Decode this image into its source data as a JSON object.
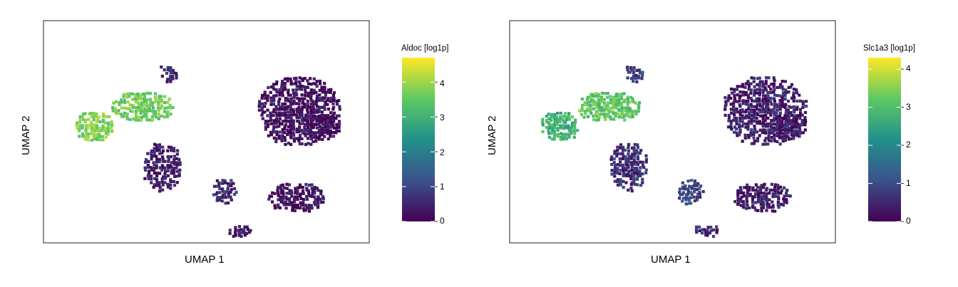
{
  "chart_data": [
    {
      "type": "hexbin",
      "xlabel": "UMAP 1",
      "ylabel": "UMAP 2",
      "colorbar": {
        "title": "Aldoc [log1p]",
        "ticks": [
          0,
          1,
          2,
          3,
          4
        ],
        "range": [
          0,
          4.7
        ]
      },
      "colormap": [
        "#440154",
        "#3b528b",
        "#21918c",
        "#5ec962",
        "#fde725"
      ],
      "clusters": [
        {
          "x": 0.78,
          "y": 0.6,
          "rx": 0.13,
          "ry": 0.16,
          "value": 0.25
        },
        {
          "x": 0.85,
          "y": 0.53,
          "rx": 0.06,
          "ry": 0.06,
          "value": 0.2
        },
        {
          "x": 0.77,
          "y": 0.21,
          "rx": 0.09,
          "ry": 0.07,
          "value": 0.2
        },
        {
          "x": 0.36,
          "y": 0.35,
          "rx": 0.06,
          "ry": 0.11,
          "value": 0.4
        },
        {
          "x": 0.3,
          "y": 0.62,
          "rx": 0.1,
          "ry": 0.07,
          "value": 3.6
        },
        {
          "x": 0.15,
          "y": 0.53,
          "rx": 0.06,
          "ry": 0.07,
          "value": 3.8
        },
        {
          "x": 0.38,
          "y": 0.77,
          "rx": 0.03,
          "ry": 0.04,
          "value": 0.5
        },
        {
          "x": 0.55,
          "y": 0.24,
          "rx": 0.04,
          "ry": 0.06,
          "value": 0.6
        },
        {
          "x": 0.6,
          "y": 0.06,
          "rx": 0.04,
          "ry": 0.03,
          "value": 0.3
        }
      ]
    },
    {
      "type": "hexbin",
      "xlabel": "UMAP 1",
      "ylabel": "UMAP 2",
      "colorbar": {
        "title": "Slc1a3 [log1p]",
        "ticks": [
          0,
          1,
          2,
          3,
          4
        ],
        "range": [
          0,
          4.3
        ]
      },
      "colormap": [
        "#440154",
        "#3b528b",
        "#21918c",
        "#5ec962",
        "#fde725"
      ],
      "clusters": [
        {
          "x": 0.78,
          "y": 0.6,
          "rx": 0.13,
          "ry": 0.16,
          "value": 0.4
        },
        {
          "x": 0.85,
          "y": 0.53,
          "rx": 0.06,
          "ry": 0.06,
          "value": 0.35
        },
        {
          "x": 0.77,
          "y": 0.21,
          "rx": 0.09,
          "ry": 0.07,
          "value": 0.35
        },
        {
          "x": 0.36,
          "y": 0.35,
          "rx": 0.06,
          "ry": 0.11,
          "value": 0.6
        },
        {
          "x": 0.3,
          "y": 0.62,
          "rx": 0.1,
          "ry": 0.07,
          "value": 3.2
        },
        {
          "x": 0.15,
          "y": 0.53,
          "rx": 0.06,
          "ry": 0.07,
          "value": 2.8
        },
        {
          "x": 0.38,
          "y": 0.77,
          "rx": 0.03,
          "ry": 0.04,
          "value": 0.8
        },
        {
          "x": 0.55,
          "y": 0.24,
          "rx": 0.04,
          "ry": 0.06,
          "value": 0.9
        },
        {
          "x": 0.6,
          "y": 0.06,
          "rx": 0.04,
          "ry": 0.03,
          "value": 0.5
        }
      ]
    }
  ]
}
